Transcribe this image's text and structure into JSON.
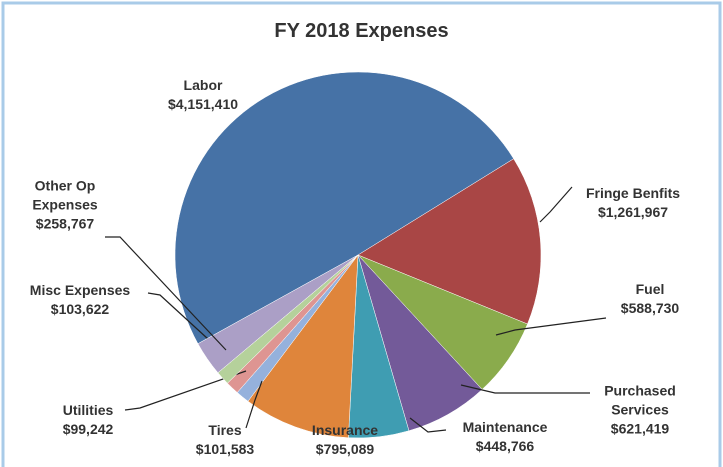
{
  "chart_data": {
    "type": "pie",
    "title": "FY 2018 Expenses",
    "categories": [
      "Labor",
      "Fringe Benfits",
      "Fuel",
      "Purchased Services",
      "Maintenance",
      "Insurance",
      "Tires",
      "Utilities",
      "Misc Expenses",
      "Other Op Expenses"
    ],
    "values": [
      4151410,
      1261967,
      588730,
      621419,
      448766,
      795089,
      101583,
      99242,
      103622,
      258767
    ],
    "value_labels": [
      "$4,151,410",
      "$1,261,967",
      "$588,730",
      "$621,419",
      "$448,766",
      "$795,089",
      "$101,583",
      "$99,242",
      "$103,622",
      "$258,767"
    ],
    "colors": [
      "#4672a6",
      "#a94645",
      "#8aab4c",
      "#735a99",
      "#3f9db2",
      "#df853b",
      "#95b1dc",
      "#de9592",
      "#b5d19b",
      "#ab9fc6"
    ]
  }
}
